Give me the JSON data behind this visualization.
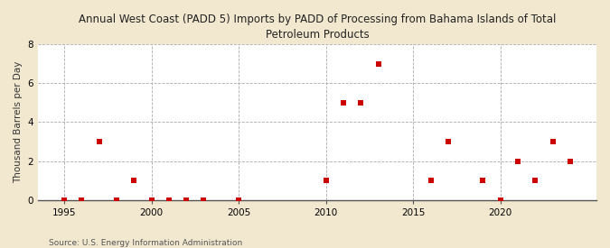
{
  "title": "Annual West Coast (PADD 5) Imports by PADD of Processing from Bahama Islands of Total\nPetroleum Products",
  "ylabel": "Thousand Barrels per Day",
  "source": "Source: U.S. Energy Information Administration",
  "background_color": "#f2e8d0",
  "plot_bg_color": "#ffffff",
  "marker_color": "#cc0000",
  "marker_size": 4,
  "xlim": [
    1993.5,
    2025.5
  ],
  "ylim": [
    0,
    8
  ],
  "yticks": [
    0,
    2,
    4,
    6,
    8
  ],
  "xticks": [
    1995,
    2000,
    2005,
    2010,
    2015,
    2020
  ],
  "grid_color": "#aaaaaa",
  "years": [
    1995,
    1996,
    1997,
    1998,
    1999,
    2000,
    2001,
    2002,
    2003,
    2005,
    2010,
    2011,
    2012,
    2013,
    2016,
    2017,
    2019,
    2020,
    2021,
    2022,
    2023,
    2024
  ],
  "values": [
    0,
    0,
    3,
    0,
    1,
    0,
    0,
    0,
    0,
    0,
    1,
    5,
    5,
    7,
    1,
    3,
    1,
    0,
    2,
    1,
    3,
    2
  ]
}
